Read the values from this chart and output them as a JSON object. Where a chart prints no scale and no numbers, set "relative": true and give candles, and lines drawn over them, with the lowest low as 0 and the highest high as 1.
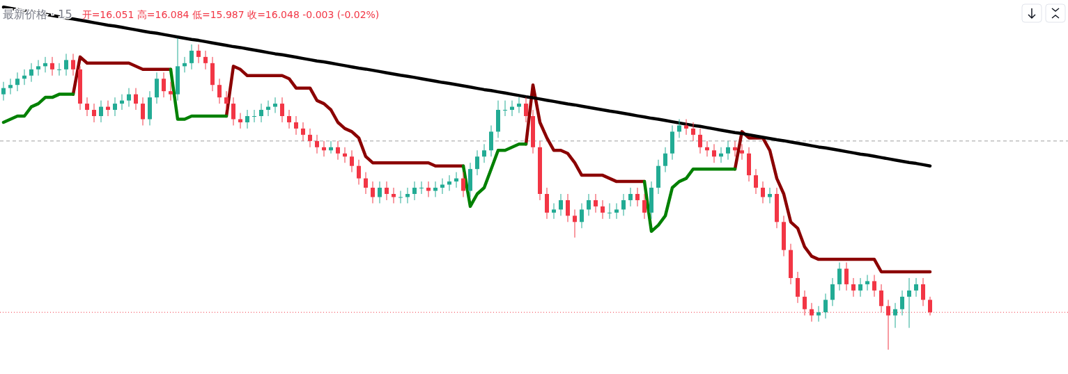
{
  "chart_data": {
    "type": "candlestick",
    "relative": true,
    "title": "最新价格 · 15",
    "subtitle": "开=16.051 高=16.084 低=15.987 收=16.048 -0.003 (-0.02%)",
    "categories": [
      null,
      null,
      null,
      null,
      null,
      null,
      null,
      null,
      null,
      null,
      null,
      null,
      null,
      null,
      null,
      null,
      null,
      null,
      null,
      null,
      null,
      null,
      null,
      null,
      null,
      null,
      null,
      null,
      null,
      null,
      null,
      null,
      null,
      null,
      null,
      null,
      null,
      null,
      null,
      null,
      null,
      null,
      null,
      null,
      null,
      null,
      null,
      null,
      null,
      null,
      null,
      null,
      null,
      null,
      null,
      null,
      null,
      null,
      null,
      null,
      null,
      null,
      null,
      null,
      null,
      null,
      null,
      null,
      null,
      null,
      null,
      null,
      null,
      null,
      null,
      null,
      null,
      null,
      null,
      null,
      null,
      null,
      null,
      null,
      null,
      null,
      null,
      null,
      null,
      null,
      null,
      null,
      null,
      null,
      null,
      null,
      null,
      null,
      null,
      null,
      null,
      null,
      null,
      null,
      null,
      null,
      null,
      null,
      null,
      null,
      null,
      null,
      null,
      null,
      null,
      null,
      null,
      null,
      null,
      null,
      null,
      null,
      null,
      null,
      null,
      null,
      null,
      null,
      null,
      null,
      null,
      null,
      null,
      null
    ],
    "ohlc": [
      [
        0.82,
        0.86,
        0.8,
        0.84
      ],
      [
        0.84,
        0.87,
        0.82,
        0.85
      ],
      [
        0.85,
        0.89,
        0.83,
        0.87
      ],
      [
        0.87,
        0.9,
        0.85,
        0.88
      ],
      [
        0.88,
        0.92,
        0.86,
        0.9
      ],
      [
        0.9,
        0.93,
        0.88,
        0.91
      ],
      [
        0.91,
        0.94,
        0.89,
        0.92
      ],
      [
        0.92,
        0.94,
        0.88,
        0.9
      ],
      [
        0.9,
        0.92,
        0.88,
        0.9
      ],
      [
        0.9,
        0.95,
        0.88,
        0.93
      ],
      [
        0.93,
        0.95,
        0.88,
        0.9
      ],
      [
        0.9,
        0.91,
        0.77,
        0.79
      ],
      [
        0.79,
        0.81,
        0.75,
        0.77
      ],
      [
        0.77,
        0.79,
        0.73,
        0.75
      ],
      [
        0.75,
        0.8,
        0.73,
        0.78
      ],
      [
        0.78,
        0.8,
        0.75,
        0.77
      ],
      [
        0.77,
        0.81,
        0.75,
        0.79
      ],
      [
        0.79,
        0.82,
        0.77,
        0.8
      ],
      [
        0.8,
        0.84,
        0.78,
        0.82
      ],
      [
        0.82,
        0.84,
        0.77,
        0.79
      ],
      [
        0.79,
        0.81,
        0.72,
        0.74
      ],
      [
        0.74,
        0.83,
        0.72,
        0.81
      ],
      [
        0.81,
        0.89,
        0.79,
        0.87
      ],
      [
        0.87,
        0.89,
        0.81,
        0.83
      ],
      [
        0.83,
        0.86,
        0.8,
        0.82
      ],
      [
        0.82,
        1.0,
        0.8,
        0.91
      ],
      [
        0.91,
        0.94,
        0.89,
        0.92
      ],
      [
        0.92,
        0.98,
        0.9,
        0.96
      ],
      [
        0.96,
        0.98,
        0.92,
        0.94
      ],
      [
        0.94,
        0.96,
        0.9,
        0.92
      ],
      [
        0.92,
        0.94,
        0.83,
        0.85
      ],
      [
        0.85,
        0.87,
        0.79,
        0.81
      ],
      [
        0.81,
        0.83,
        0.77,
        0.79
      ],
      [
        0.79,
        0.81,
        0.72,
        0.74
      ],
      [
        0.74,
        0.76,
        0.71,
        0.73
      ],
      [
        0.73,
        0.77,
        0.71,
        0.75
      ],
      [
        0.75,
        0.77,
        0.73,
        0.75
      ],
      [
        0.75,
        0.79,
        0.73,
        0.77
      ],
      [
        0.77,
        0.8,
        0.75,
        0.78
      ],
      [
        0.78,
        0.81,
        0.76,
        0.79
      ],
      [
        0.79,
        0.81,
        0.73,
        0.75
      ],
      [
        0.75,
        0.77,
        0.71,
        0.73
      ],
      [
        0.73,
        0.75,
        0.69,
        0.71
      ],
      [
        0.71,
        0.73,
        0.67,
        0.69
      ],
      [
        0.69,
        0.71,
        0.65,
        0.67
      ],
      [
        0.67,
        0.69,
        0.63,
        0.65
      ],
      [
        0.65,
        0.67,
        0.62,
        0.64
      ],
      [
        0.64,
        0.67,
        0.63,
        0.65
      ],
      [
        0.65,
        0.67,
        0.61,
        0.63
      ],
      [
        0.63,
        0.65,
        0.6,
        0.62
      ],
      [
        0.62,
        0.64,
        0.57,
        0.59
      ],
      [
        0.59,
        0.61,
        0.53,
        0.55
      ],
      [
        0.55,
        0.57,
        0.5,
        0.52
      ],
      [
        0.52,
        0.54,
        0.47,
        0.49
      ],
      [
        0.49,
        0.54,
        0.47,
        0.52
      ],
      [
        0.52,
        0.54,
        0.48,
        0.5
      ],
      [
        0.5,
        0.52,
        0.47,
        0.49
      ],
      [
        0.49,
        0.51,
        0.47,
        0.49
      ],
      [
        0.49,
        0.52,
        0.47,
        0.5
      ],
      [
        0.5,
        0.54,
        0.48,
        0.52
      ],
      [
        0.52,
        0.54,
        0.5,
        0.52
      ],
      [
        0.52,
        0.54,
        0.49,
        0.51
      ],
      [
        0.51,
        0.54,
        0.49,
        0.52
      ],
      [
        0.52,
        0.55,
        0.5,
        0.53
      ],
      [
        0.53,
        0.56,
        0.51,
        0.54
      ],
      [
        0.54,
        0.57,
        0.52,
        0.55
      ],
      [
        0.55,
        0.57,
        0.49,
        0.51
      ],
      [
        0.51,
        0.6,
        0.49,
        0.58
      ],
      [
        0.58,
        0.64,
        0.56,
        0.62
      ],
      [
        0.62,
        0.66,
        0.6,
        0.64
      ],
      [
        0.64,
        0.72,
        0.62,
        0.7
      ],
      [
        0.7,
        0.8,
        0.68,
        0.77
      ],
      [
        0.77,
        0.8,
        0.75,
        0.77
      ],
      [
        0.77,
        0.8,
        0.75,
        0.78
      ],
      [
        0.78,
        0.81,
        0.76,
        0.79
      ],
      [
        0.79,
        0.81,
        0.73,
        0.75
      ],
      [
        0.75,
        0.77,
        0.63,
        0.65
      ],
      [
        0.65,
        0.67,
        0.48,
        0.5
      ],
      [
        0.5,
        0.52,
        0.42,
        0.44
      ],
      [
        0.44,
        0.47,
        0.42,
        0.45
      ],
      [
        0.45,
        0.5,
        0.43,
        0.48
      ],
      [
        0.48,
        0.5,
        0.41,
        0.43
      ],
      [
        0.43,
        0.45,
        0.36,
        0.41
      ],
      [
        0.41,
        0.47,
        0.39,
        0.45
      ],
      [
        0.45,
        0.5,
        0.43,
        0.48
      ],
      [
        0.48,
        0.5,
        0.44,
        0.46
      ],
      [
        0.46,
        0.48,
        0.42,
        0.44
      ],
      [
        0.44,
        0.47,
        0.42,
        0.44
      ],
      [
        0.44,
        0.47,
        0.42,
        0.45
      ],
      [
        0.45,
        0.5,
        0.43,
        0.48
      ],
      [
        0.48,
        0.52,
        0.46,
        0.5
      ],
      [
        0.5,
        0.52,
        0.46,
        0.48
      ],
      [
        0.48,
        0.5,
        0.42,
        0.44
      ],
      [
        0.44,
        0.54,
        0.42,
        0.52
      ],
      [
        0.52,
        0.61,
        0.5,
        0.59
      ],
      [
        0.59,
        0.65,
        0.57,
        0.63
      ],
      [
        0.63,
        0.72,
        0.61,
        0.7
      ],
      [
        0.7,
        0.74,
        0.68,
        0.72
      ],
      [
        0.72,
        0.74,
        0.69,
        0.71
      ],
      [
        0.71,
        0.73,
        0.67,
        0.69
      ],
      [
        0.69,
        0.71,
        0.63,
        0.65
      ],
      [
        0.65,
        0.67,
        0.62,
        0.64
      ],
      [
        0.64,
        0.66,
        0.6,
        0.62
      ],
      [
        0.62,
        0.65,
        0.6,
        0.63
      ],
      [
        0.63,
        0.67,
        0.61,
        0.65
      ],
      [
        0.65,
        0.67,
        0.62,
        0.64
      ],
      [
        0.64,
        0.66,
        0.61,
        0.63
      ],
      [
        0.63,
        0.65,
        0.54,
        0.56
      ],
      [
        0.56,
        0.58,
        0.5,
        0.52
      ],
      [
        0.52,
        0.54,
        0.47,
        0.49
      ],
      [
        0.49,
        0.52,
        0.47,
        0.5
      ],
      [
        0.5,
        0.52,
        0.39,
        0.41
      ],
      [
        0.41,
        0.43,
        0.3,
        0.32
      ],
      [
        0.32,
        0.34,
        0.21,
        0.23
      ],
      [
        0.23,
        0.25,
        0.15,
        0.17
      ],
      [
        0.17,
        0.19,
        0.11,
        0.13
      ],
      [
        0.13,
        0.15,
        0.09,
        0.11
      ],
      [
        0.11,
        0.14,
        0.09,
        0.12
      ],
      [
        0.12,
        0.18,
        0.1,
        0.16
      ],
      [
        0.16,
        0.23,
        0.14,
        0.21
      ],
      [
        0.21,
        0.28,
        0.19,
        0.26
      ],
      [
        0.26,
        0.28,
        0.19,
        0.21
      ],
      [
        0.21,
        0.23,
        0.17,
        0.19
      ],
      [
        0.19,
        0.23,
        0.17,
        0.21
      ],
      [
        0.21,
        0.24,
        0.19,
        0.22
      ],
      [
        0.22,
        0.24,
        0.17,
        0.19
      ],
      [
        0.19,
        0.21,
        0.12,
        0.14
      ],
      [
        0.14,
        0.16,
        0.0,
        0.11
      ],
      [
        0.11,
        0.15,
        0.07,
        0.13
      ],
      [
        0.13,
        0.19,
        0.11,
        0.17
      ],
      [
        0.17,
        0.23,
        0.07,
        0.19
      ],
      [
        0.19,
        0.23,
        0.17,
        0.21
      ],
      [
        0.21,
        0.23,
        0.14,
        0.16
      ],
      [
        0.16,
        0.17,
        0.11,
        0.12
      ]
    ],
    "series": [
      {
        "type": "line",
        "color": "#8b0000",
        "values": [
          null,
          null,
          null,
          null,
          null,
          null,
          null,
          null,
          null,
          null,
          0.82,
          0.94,
          0.92,
          0.92,
          0.92,
          0.92,
          0.92,
          0.92,
          0.92,
          0.91,
          0.9,
          0.9,
          0.9,
          0.9,
          0.9,
          null,
          null,
          null,
          null,
          null,
          null,
          null,
          0.75,
          0.91,
          0.9,
          0.88,
          0.88,
          0.88,
          0.88,
          0.88,
          0.88,
          0.87,
          0.84,
          0.84,
          0.84,
          0.8,
          0.79,
          0.77,
          0.73,
          0.71,
          0.7,
          0.68,
          0.62,
          0.6,
          0.6,
          0.6,
          0.6,
          0.6,
          0.6,
          0.6,
          0.6,
          0.6,
          0.59,
          0.59,
          0.59,
          0.59,
          0.59,
          null,
          null,
          null,
          null,
          null,
          null,
          null,
          null,
          0.66,
          0.85,
          0.73,
          0.68,
          0.64,
          0.64,
          0.63,
          0.6,
          0.56,
          0.56,
          0.56,
          0.56,
          0.55,
          0.54,
          0.54,
          0.54,
          0.54,
          0.54,
          null,
          null,
          null,
          null,
          null,
          null,
          null,
          null,
          null,
          null,
          null,
          null,
          0.58,
          0.7,
          0.68,
          0.68,
          0.68,
          0.64,
          0.55,
          0.5,
          0.41,
          0.39,
          0.33,
          0.3,
          0.29,
          0.29,
          0.29,
          0.29,
          0.29,
          0.29,
          0.29,
          0.29,
          0.29,
          0.25,
          0.25,
          0.25,
          0.25,
          0.25,
          0.25,
          0.25,
          0.25
        ]
      },
      {
        "type": "line",
        "color": "#008000",
        "values": [
          0.73,
          0.74,
          0.75,
          0.75,
          0.78,
          0.79,
          0.81,
          0.81,
          0.82,
          0.82,
          0.82,
          null,
          null,
          null,
          null,
          null,
          null,
          null,
          null,
          null,
          null,
          null,
          null,
          null,
          0.9,
          0.74,
          0.74,
          0.75,
          0.75,
          0.75,
          0.75,
          0.75,
          0.75,
          null,
          null,
          null,
          null,
          null,
          null,
          null,
          null,
          null,
          null,
          null,
          null,
          null,
          null,
          null,
          null,
          null,
          null,
          null,
          null,
          null,
          null,
          null,
          null,
          null,
          null,
          null,
          null,
          null,
          null,
          null,
          null,
          null,
          0.59,
          0.46,
          0.5,
          0.52,
          0.58,
          0.64,
          0.64,
          0.65,
          0.66,
          0.66,
          null,
          null,
          null,
          null,
          null,
          null,
          null,
          null,
          null,
          null,
          null,
          null,
          null,
          null,
          null,
          null,
          0.54,
          0.38,
          0.4,
          0.43,
          0.52,
          0.54,
          0.55,
          0.58,
          0.58,
          0.58,
          0.58,
          0.58,
          0.58,
          0.58,
          null,
          null,
          null,
          null,
          null,
          null,
          null,
          null,
          null,
          null,
          null,
          null,
          null,
          null,
          null,
          null,
          null,
          null,
          null,
          null,
          null,
          null,
          null,
          null,
          null,
          null,
          null,
          null
        ]
      },
      {
        "type": "line",
        "color": "#000000",
        "values": [
          1.1,
          1.096,
          1.092,
          1.088,
          1.085,
          1.081,
          1.077,
          1.073,
          1.069,
          1.065,
          1.062,
          1.058,
          1.054,
          1.05,
          1.046,
          1.042,
          1.039,
          1.035,
          1.031,
          1.027,
          1.023,
          1.019,
          1.016,
          1.012,
          1.008,
          1.004,
          1.0,
          0.996,
          0.993,
          0.989,
          0.985,
          0.981,
          0.977,
          0.973,
          0.97,
          0.966,
          0.962,
          0.958,
          0.954,
          0.95,
          0.947,
          0.943,
          0.939,
          0.935,
          0.931,
          0.927,
          0.924,
          0.92,
          0.916,
          0.912,
          0.908,
          0.904,
          0.901,
          0.897,
          0.893,
          0.889,
          0.885,
          0.881,
          0.878,
          0.874,
          0.87,
          0.866,
          0.862,
          0.858,
          0.855,
          0.851,
          0.847,
          0.843,
          0.839,
          0.835,
          0.832,
          0.828,
          0.824,
          0.82,
          0.816,
          0.812,
          0.809,
          0.805,
          0.801,
          0.797,
          0.793,
          0.789,
          0.786,
          0.782,
          0.778,
          0.774,
          0.77,
          0.766,
          0.763,
          0.759,
          0.755,
          0.751,
          0.747,
          0.743,
          0.74,
          0.736,
          0.732,
          0.728,
          0.724,
          0.72,
          0.717,
          0.713,
          0.709,
          0.705,
          0.701,
          0.697,
          0.694,
          0.69,
          0.686,
          0.682,
          0.678,
          0.674,
          0.671,
          0.667,
          0.663,
          0.659,
          0.655,
          0.651,
          0.648,
          0.644,
          0.64,
          0.636,
          0.632,
          0.628,
          0.625,
          0.621,
          0.617,
          0.613,
          0.609,
          0.605,
          0.601,
          0.598,
          0.594,
          0.59
        ]
      }
    ],
    "ref_lines": [
      {
        "axis": "y",
        "value": 0.67,
        "color": "#9e9e9e",
        "line_style": "dashed"
      },
      {
        "axis": "y",
        "value": 0.12,
        "color": "#f23645",
        "line_style": "dotted"
      }
    ]
  }
}
